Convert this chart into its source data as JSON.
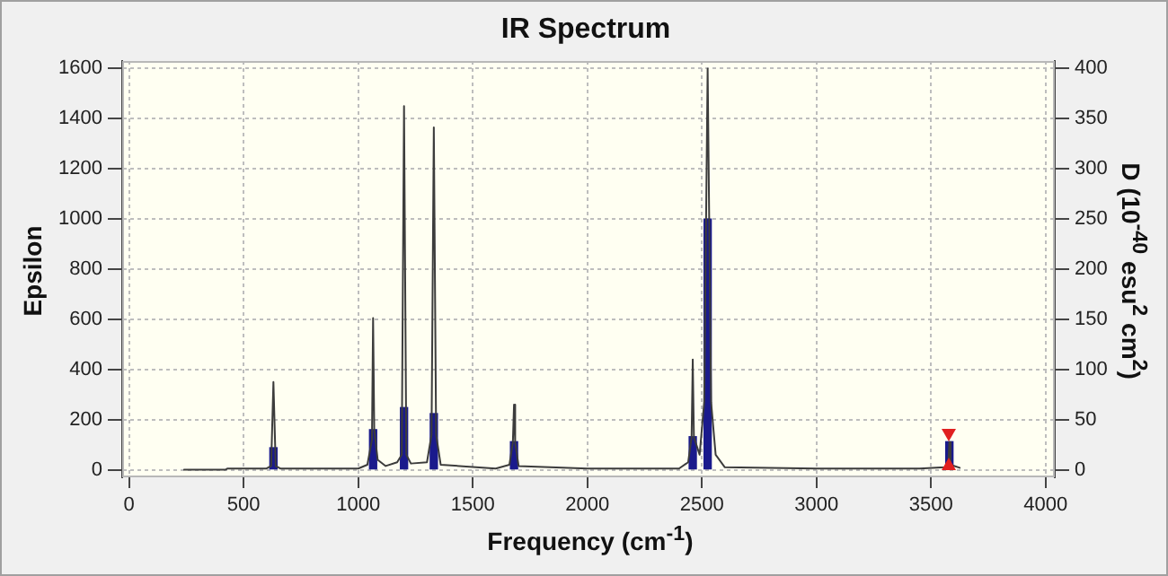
{
  "chart_data": {
    "type": "line",
    "title": "IR Spectrum",
    "xlabel": "Frequency (cm$^{-1}$)",
    "ylabel": "Epsilon",
    "y2label": "D (10$^{-40}$ esu$^{2}$ cm$^{2}$)",
    "series": [
      {
        "color": "#3c3c3c",
        "x": [
          240,
          420,
          430,
          600,
          620,
          630,
          640,
          660,
          1000,
          1040,
          1060,
          1065,
          1070,
          1085,
          1120,
          1170,
          1190,
          1200,
          1210,
          1230,
          1300,
          1320,
          1330,
          1340,
          1360,
          1600,
          1660,
          1675,
          1680,
          1685,
          1700,
          2000,
          2400,
          2440,
          2455,
          2460,
          2465,
          2490,
          2510,
          2525,
          2540,
          2560,
          2600,
          3000,
          3450,
          3560,
          3575,
          3580,
          3585,
          3625
        ],
        "values": [
          0,
          0,
          5,
          5,
          15,
          350,
          15,
          5,
          5,
          20,
          120,
          605,
          160,
          40,
          15,
          30,
          60,
          1450,
          60,
          25,
          30,
          140,
          1365,
          140,
          20,
          5,
          20,
          110,
          260,
          110,
          15,
          5,
          5,
          30,
          130,
          440,
          130,
          60,
          270,
          1600,
          270,
          60,
          10,
          5,
          5,
          10,
          20,
          110,
          20,
          8
        ]
      },
      {
        "type": "bar",
        "axis": "y2",
        "color": "#1a1a8c",
        "x": [
          630,
          1065,
          1200,
          1330,
          1680,
          2460,
          2525,
          3580
        ],
        "values": [
          22,
          40,
          62,
          56,
          28,
          33,
          250,
          28
        ]
      }
    ],
    "xlim": [
      -30,
      4040
    ],
    "xticks": [
      0,
      500,
      1000,
      1500,
      2000,
      2500,
      3000,
      3500,
      4000
    ],
    "ylim": [
      -30,
      1630
    ],
    "yticks": [
      0,
      200,
      400,
      600,
      800,
      1000,
      1200,
      1400,
      1600
    ],
    "y2lim": [
      -7.5,
      407.5
    ],
    "y2ticks": [
      0,
      50,
      100,
      150,
      200,
      250,
      300,
      350,
      400
    ],
    "grid": true,
    "legend": false,
    "marker": "none",
    "line_style": "solid"
  }
}
